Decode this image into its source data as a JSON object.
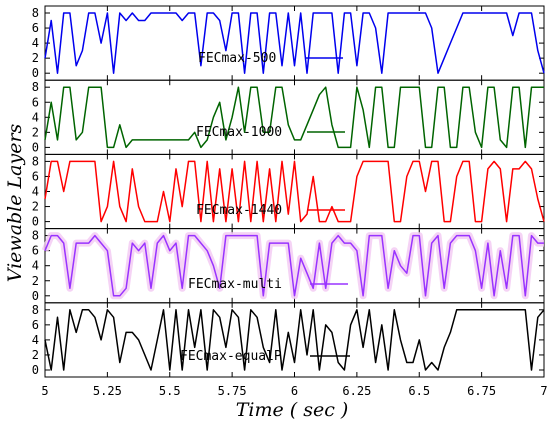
{
  "chart_data": {
    "type": "line",
    "xlabel": "Time ( sec )",
    "ylabel": "Viewable Layers",
    "xlim": [
      5,
      7
    ],
    "x_ticks": [
      "5",
      "5.25",
      "5.5",
      "5.75",
      "6",
      "6.25",
      "6.5",
      "6.75",
      "7"
    ],
    "ylim": [
      0,
      8
    ],
    "y_ticks": [
      "0",
      "2",
      "4",
      "6",
      "8"
    ],
    "grid": false,
    "x": [
      5.0,
      5.025,
      5.05,
      5.075,
      5.1,
      5.125,
      5.15,
      5.175,
      5.2,
      5.225,
      5.25,
      5.275,
      5.3,
      5.325,
      5.35,
      5.375,
      5.4,
      5.425,
      5.45,
      5.475,
      5.5,
      5.525,
      5.55,
      5.575,
      5.6,
      5.625,
      5.65,
      5.675,
      5.7,
      5.725,
      5.75,
      5.775,
      5.8,
      5.825,
      5.85,
      5.875,
      5.9,
      5.925,
      5.95,
      5.975,
      6.0,
      6.025,
      6.05,
      6.075,
      6.1,
      6.125,
      6.15,
      6.175,
      6.2,
      6.225,
      6.25,
      6.275,
      6.3,
      6.325,
      6.35,
      6.375,
      6.4,
      6.425,
      6.45,
      6.475,
      6.5,
      6.525,
      6.55,
      6.575,
      6.6,
      6.625,
      6.65,
      6.675,
      6.7,
      6.725,
      6.75,
      6.775,
      6.8,
      6.825,
      6.85,
      6.875,
      6.9,
      6.925,
      6.95,
      6.975,
      7.0
    ],
    "series": [
      {
        "name": "FECmax-500",
        "color": "#0000ee",
        "values": [
          2,
          7,
          0,
          8,
          8,
          1,
          3,
          8,
          8,
          4,
          8,
          0,
          8,
          7,
          8,
          7,
          7,
          8,
          8,
          8,
          8,
          8,
          7,
          8,
          8,
          1,
          8,
          8,
          7,
          3,
          8,
          8,
          0,
          8,
          8,
          0,
          8,
          8,
          1,
          8,
          1,
          8,
          0,
          8,
          8,
          8,
          8,
          0,
          8,
          8,
          1,
          8,
          8,
          6,
          0,
          8,
          8,
          8,
          8,
          8,
          8,
          8,
          6,
          0,
          2,
          4,
          6,
          8,
          8,
          8,
          8,
          8,
          8,
          8,
          8,
          5,
          8,
          8,
          8,
          3,
          0
        ]
      },
      {
        "name": "FECmax-1000",
        "color": "#006400",
        "values": [
          1,
          6,
          1,
          8,
          8,
          1,
          2,
          8,
          8,
          8,
          0,
          0,
          3,
          0,
          1,
          1,
          1,
          1,
          1,
          1,
          1,
          1,
          1,
          1,
          2,
          0,
          1,
          4,
          6,
          1,
          4,
          8,
          2,
          8,
          8,
          2,
          2,
          8,
          8,
          3,
          1,
          1,
          3,
          5,
          7,
          8,
          3,
          0,
          0,
          0,
          8,
          5,
          0,
          8,
          8,
          0,
          0,
          8,
          8,
          8,
          8,
          0,
          0,
          8,
          8,
          0,
          0,
          8,
          8,
          2,
          0,
          8,
          8,
          1,
          0,
          8,
          8,
          0,
          8,
          8,
          8
        ]
      },
      {
        "name": "FECmax-1440",
        "color": "#ff0000",
        "values": [
          3,
          8,
          8,
          4,
          8,
          8,
          8,
          8,
          8,
          0,
          2,
          8,
          2,
          0,
          7,
          2,
          0,
          0,
          0,
          4,
          0,
          7,
          2,
          8,
          8,
          0,
          8,
          0,
          7,
          0,
          7,
          0,
          8,
          0,
          8,
          0,
          7,
          0,
          8,
          1,
          8,
          0,
          1,
          6,
          0,
          0,
          2,
          0,
          0,
          0,
          6,
          8,
          8,
          8,
          8,
          8,
          0,
          0,
          6,
          8,
          8,
          4,
          8,
          8,
          0,
          0,
          6,
          8,
          8,
          0,
          0,
          7,
          8,
          7,
          0,
          7,
          7,
          8,
          7,
          3,
          0
        ]
      },
      {
        "name": "FECmax-multi",
        "color": "#9933ff",
        "values": [
          6,
          8,
          8,
          7,
          1,
          7,
          7,
          7,
          8,
          7,
          6,
          0,
          0,
          1,
          7,
          6,
          7,
          1,
          7,
          8,
          6,
          7,
          1,
          8,
          8,
          7,
          6,
          4,
          1,
          8,
          8,
          8,
          8,
          8,
          8,
          0,
          7,
          7,
          7,
          7,
          0,
          5,
          3,
          1,
          7,
          1,
          7,
          8,
          7,
          7,
          6,
          0,
          8,
          8,
          8,
          1,
          6,
          4,
          3,
          8,
          8,
          0,
          7,
          8,
          1,
          7,
          8,
          8,
          8,
          6,
          1,
          7,
          0,
          6,
          1,
          8,
          8,
          0,
          8,
          7,
          7
        ]
      },
      {
        "name": "FECmax-equalP",
        "color": "#000000",
        "values": [
          4,
          0,
          7,
          0,
          8,
          5,
          8,
          8,
          7,
          4,
          8,
          7,
          1,
          5,
          5,
          4,
          2,
          0,
          4,
          8,
          0,
          8,
          0,
          8,
          3,
          8,
          0,
          8,
          7,
          3,
          8,
          7,
          0,
          8,
          7,
          3,
          1,
          8,
          0,
          5,
          1,
          8,
          2,
          8,
          0,
          6,
          5,
          1,
          0,
          6,
          8,
          3,
          8,
          1,
          6,
          0,
          8,
          4,
          1,
          1,
          4,
          0,
          1,
          0,
          3,
          5,
          8,
          8,
          8,
          8,
          8,
          8,
          8,
          8,
          8,
          8,
          8,
          8,
          0,
          7,
          8
        ]
      }
    ]
  }
}
